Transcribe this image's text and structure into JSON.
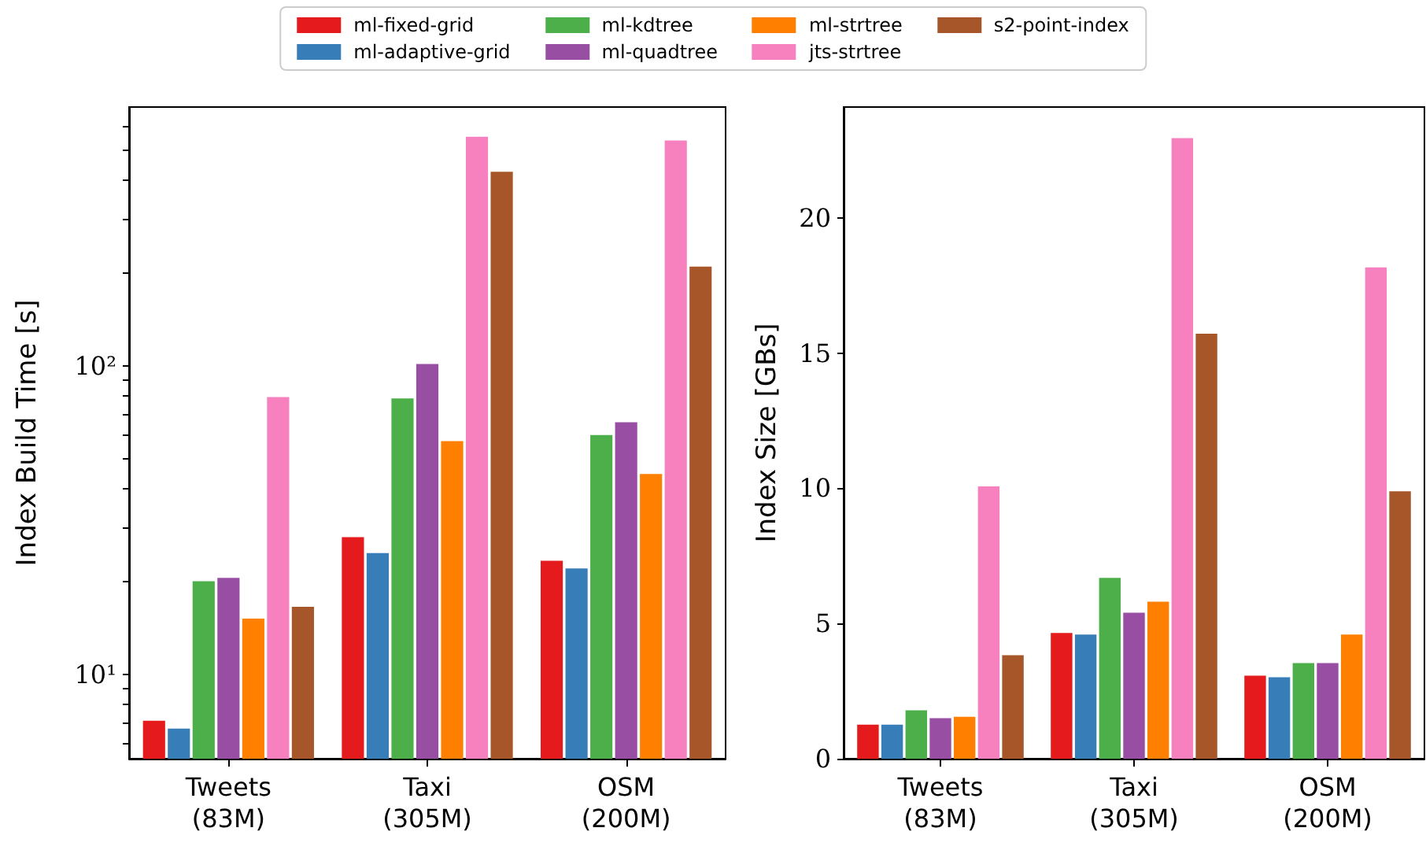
{
  "chart_data": [
    {
      "type": "bar",
      "ylabel": "Index Build Time [s]",
      "categories": [
        "Tweets\n(83M)",
        "Taxi\n(305M)",
        "OSM\n(200M)"
      ],
      "log": true,
      "ylim": [
        5.35,
        690
      ],
      "yticks": [
        {
          "value": 6,
          "label": null
        },
        {
          "value": 7,
          "label": null
        },
        {
          "value": 8,
          "label": null
        },
        {
          "value": 9,
          "label": null
        },
        {
          "value": 10,
          "label": "10¹"
        },
        {
          "value": 20,
          "label": null
        },
        {
          "value": 30,
          "label": null
        },
        {
          "value": 40,
          "label": null
        },
        {
          "value": 50,
          "label": null
        },
        {
          "value": 60,
          "label": null
        },
        {
          "value": 70,
          "label": null
        },
        {
          "value": 80,
          "label": null
        },
        {
          "value": 90,
          "label": null
        },
        {
          "value": 100,
          "label": "10²"
        },
        {
          "value": 200,
          "label": null
        },
        {
          "value": 300,
          "label": null
        },
        {
          "value": 400,
          "label": null
        },
        {
          "value": 500,
          "label": null
        },
        {
          "value": 600,
          "label": null
        }
      ],
      "legend": "top",
      "series": [
        {
          "name": "ml-fixed-grid",
          "color": "#e41a1c",
          "values": [
            7.1,
            27.9,
            23.4
          ]
        },
        {
          "name": "ml-adaptive-grid",
          "color": "#377eb8",
          "values": [
            6.7,
            24.8,
            22.1
          ]
        },
        {
          "name": "ml-kdtree",
          "color": "#4daf4a",
          "values": [
            20.1,
            78.5,
            59.8
          ]
        },
        {
          "name": "ml-quadtree",
          "color": "#984ea3",
          "values": [
            20.6,
            101.6,
            65.8
          ]
        },
        {
          "name": "ml-strtree",
          "color": "#ff7f00",
          "values": [
            15.2,
            57.1,
            44.7
          ]
        },
        {
          "name": "jts-strtree",
          "color": "#f781bf",
          "values": [
            79.4,
            553,
            538
          ]
        },
        {
          "name": "s2-point-index",
          "color": "#a65628",
          "values": [
            16.6,
            426,
            210
          ]
        }
      ]
    },
    {
      "type": "bar",
      "ylabel": "Index Size [GBs]",
      "categories": [
        "Tweets\n(83M)",
        "Taxi\n(305M)",
        "OSM\n(200M)"
      ],
      "ylim": [
        0,
        24.1
      ],
      "yticks": [
        0,
        5,
        10,
        15,
        20
      ],
      "series": [
        {
          "color": "#e41a1c",
          "values": [
            1.26,
            4.65,
            3.07
          ]
        },
        {
          "color": "#377eb8",
          "values": [
            1.26,
            4.59,
            3.01
          ]
        },
        {
          "color": "#4daf4a",
          "values": [
            1.79,
            6.69,
            3.54
          ]
        },
        {
          "color": "#984ea3",
          "values": [
            1.5,
            5.4,
            3.54
          ]
        },
        {
          "color": "#ff7f00",
          "values": [
            1.55,
            5.81,
            4.59
          ]
        },
        {
          "color": "#f781bf",
          "values": [
            10.07,
            22.95,
            18.17
          ]
        },
        {
          "color": "#a65628",
          "values": [
            3.83,
            15.72,
            9.89
          ]
        }
      ]
    }
  ]
}
